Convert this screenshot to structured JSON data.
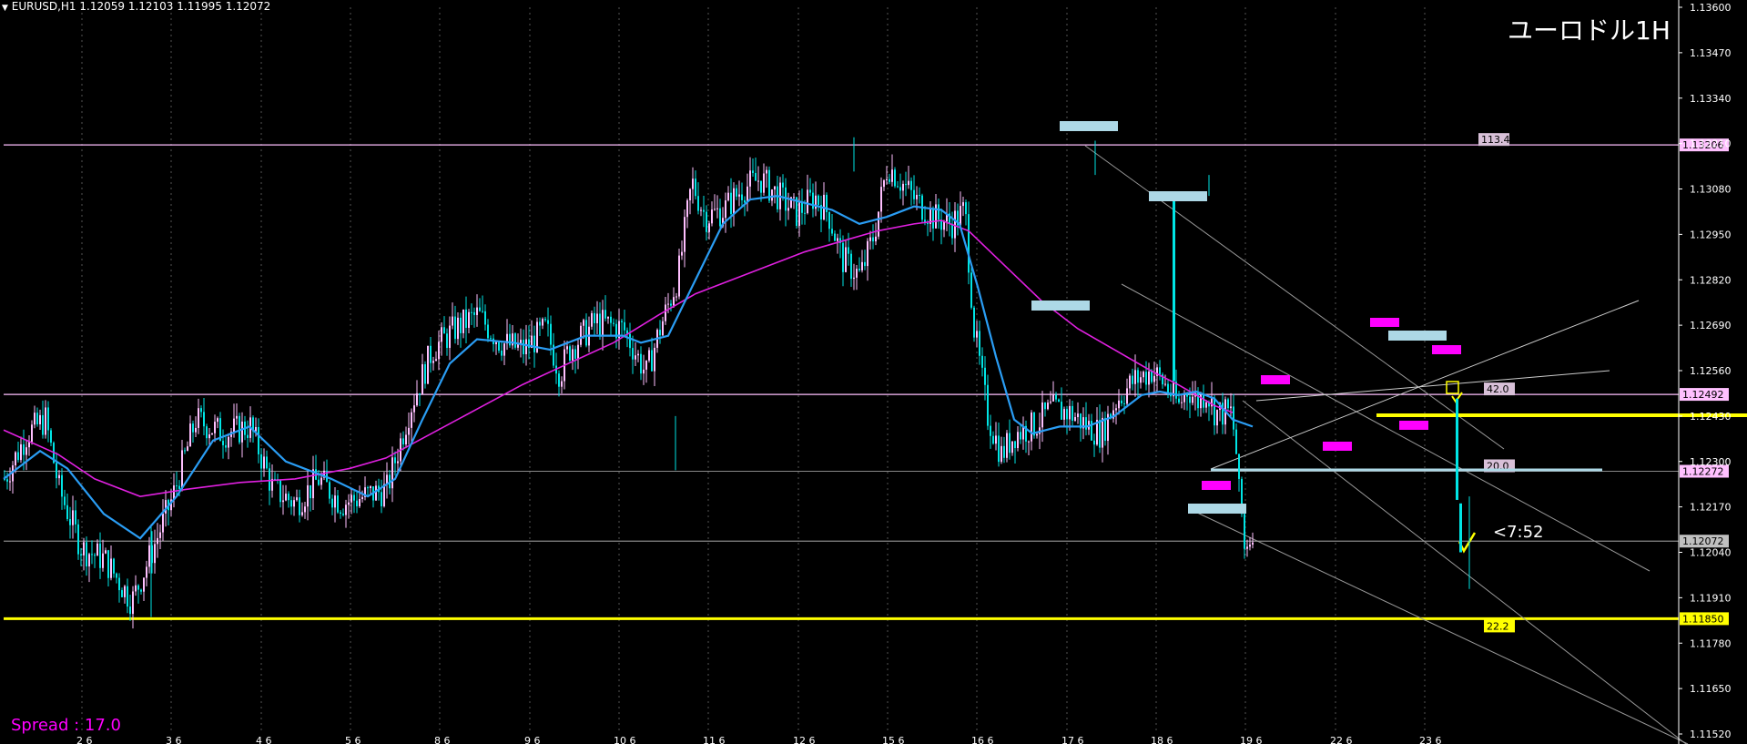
{
  "symbol_header": "EURUSD,H1  1.12059 1.12103 1.11995 1.12072",
  "title": "ユーロドル1H",
  "spread_label": "Spread : 17.0",
  "timer_label": "<7:52",
  "colors": {
    "background": "#000000",
    "up_candle": "#ffc0ff",
    "down_candle": "#00e5e5",
    "ma_fast": "#2a9df4",
    "ma_slow": "#e020e0",
    "resistance_line": "#ffc0ff",
    "yellow_line": "#ffff00",
    "cyan_marker": "#add8e6",
    "magenta_marker": "#ff00ff"
  },
  "chart_data": {
    "type": "candlestick",
    "symbol": "EURUSD",
    "timeframe": "H1",
    "ohlc_last": {
      "open": 1.12059,
      "high": 1.12103,
      "low": 1.11995,
      "close": 1.12072
    },
    "ylim": [
      1.11455,
      1.13625
    ],
    "y_ticks": [
      "1.13600",
      "1.13470",
      "1.13340",
      "1.13210",
      "1.13080",
      "1.12950",
      "1.12820",
      "1.12690",
      "1.12560",
      "1.12430",
      "1.12300",
      "1.12170",
      "1.12040",
      "1.11910",
      "1.11780",
      "1.11650",
      "1.11520"
    ],
    "x_ticks": [
      "2 6",
      "3 6",
      "4 6",
      "5 6",
      "8 6",
      "9 6",
      "10 6",
      "11 6",
      "12 6",
      "15 6",
      "16 6",
      "17 6",
      "18 6",
      "19 6",
      "22 6",
      "23 6"
    ],
    "candle_anchors": [
      [
        0,
        1.1225
      ],
      [
        25,
        1.1238
      ],
      [
        45,
        1.1242
      ],
      [
        60,
        1.1222
      ],
      [
        85,
        1.1205
      ],
      [
        110,
        1.1202
      ],
      [
        140,
        1.119
      ],
      [
        160,
        1.1203
      ],
      [
        185,
        1.122
      ],
      [
        210,
        1.1242
      ],
      [
        240,
        1.1238
      ],
      [
        270,
        1.124
      ],
      [
        295,
        1.1222
      ],
      [
        320,
        1.1218
      ],
      [
        345,
        1.1225
      ],
      [
        370,
        1.1218
      ],
      [
        395,
        1.122
      ],
      [
        420,
        1.1222
      ],
      [
        445,
        1.1245
      ],
      [
        470,
        1.1262
      ],
      [
        495,
        1.1268
      ],
      [
        520,
        1.1272
      ],
      [
        545,
        1.1264
      ],
      [
        570,
        1.1262
      ],
      [
        595,
        1.1268
      ],
      [
        610,
        1.1255
      ],
      [
        620,
        1.1262
      ],
      [
        650,
        1.127
      ],
      [
        680,
        1.1268
      ],
      [
        705,
        1.1255
      ],
      [
        720,
        1.1268
      ],
      [
        740,
        1.1283
      ],
      [
        755,
        1.131
      ],
      [
        770,
        1.13
      ],
      [
        790,
        1.1302
      ],
      [
        810,
        1.1308
      ],
      [
        830,
        1.1311
      ],
      [
        850,
        1.1306
      ],
      [
        870,
        1.1301
      ],
      [
        890,
        1.1306
      ],
      [
        905,
        1.1301
      ],
      [
        920,
        1.1288
      ],
      [
        940,
        1.1283
      ],
      [
        955,
        1.1295
      ],
      [
        970,
        1.1315
      ],
      [
        985,
        1.131
      ],
      [
        1000,
        1.1305
      ],
      [
        1020,
        1.13
      ],
      [
        1040,
        1.1298
      ],
      [
        1055,
        1.1302
      ],
      [
        1065,
        1.1268
      ],
      [
        1080,
        1.1243
      ],
      [
        1095,
        1.1232
      ],
      [
        1110,
        1.1238
      ],
      [
        1130,
        1.124
      ],
      [
        1150,
        1.1245
      ],
      [
        1170,
        1.1244
      ],
      [
        1190,
        1.124
      ],
      [
        1205,
        1.1238
      ],
      [
        1220,
        1.1247
      ],
      [
        1240,
        1.1253
      ],
      [
        1260,
        1.1256
      ],
      [
        1275,
        1.1252
      ],
      [
        1290,
        1.1246
      ],
      [
        1300,
        1.1251
      ],
      [
        1310,
        1.1247
      ],
      [
        1320,
        1.125
      ],
      [
        1330,
        1.1244
      ],
      [
        1340,
        1.1244
      ],
      [
        1348,
        1.1244
      ],
      [
        1356,
        1.1225
      ],
      [
        1362,
        1.1205
      ],
      [
        1372,
        1.1207
      ]
    ],
    "ma_fast": [
      [
        0,
        1.1225
      ],
      [
        40,
        1.1233
      ],
      [
        70,
        1.1228
      ],
      [
        110,
        1.1215
      ],
      [
        150,
        1.1208
      ],
      [
        190,
        1.122
      ],
      [
        230,
        1.1236
      ],
      [
        270,
        1.124
      ],
      [
        310,
        1.123
      ],
      [
        360,
        1.1225
      ],
      [
        400,
        1.122
      ],
      [
        430,
        1.1225
      ],
      [
        460,
        1.1242
      ],
      [
        490,
        1.1258
      ],
      [
        520,
        1.1265
      ],
      [
        560,
        1.1264
      ],
      [
        600,
        1.1262
      ],
      [
        640,
        1.1266
      ],
      [
        680,
        1.1266
      ],
      [
        700,
        1.1264
      ],
      [
        730,
        1.1266
      ],
      [
        760,
        1.1282
      ],
      [
        790,
        1.1298
      ],
      [
        820,
        1.1305
      ],
      [
        850,
        1.1306
      ],
      [
        880,
        1.1304
      ],
      [
        910,
        1.1302
      ],
      [
        940,
        1.1298
      ],
      [
        970,
        1.13
      ],
      [
        1000,
        1.1303
      ],
      [
        1030,
        1.1302
      ],
      [
        1050,
        1.1298
      ],
      [
        1070,
        1.128
      ],
      [
        1090,
        1.126
      ],
      [
        1110,
        1.1242
      ],
      [
        1130,
        1.1238
      ],
      [
        1160,
        1.124
      ],
      [
        1190,
        1.124
      ],
      [
        1220,
        1.1243
      ],
      [
        1250,
        1.1249
      ],
      [
        1270,
        1.125
      ],
      [
        1290,
        1.1249
      ],
      [
        1310,
        1.125
      ],
      [
        1330,
        1.1248
      ],
      [
        1350,
        1.1242
      ],
      [
        1372,
        1.124
      ]
    ],
    "ma_slow": [
      [
        0,
        1.1239
      ],
      [
        60,
        1.1232
      ],
      [
        100,
        1.1225
      ],
      [
        150,
        1.122
      ],
      [
        200,
        1.1222
      ],
      [
        260,
        1.1224
      ],
      [
        320,
        1.1225
      ],
      [
        380,
        1.1228
      ],
      [
        420,
        1.1231
      ],
      [
        470,
        1.1238
      ],
      [
        520,
        1.1245
      ],
      [
        570,
        1.1252
      ],
      [
        620,
        1.1258
      ],
      [
        670,
        1.1264
      ],
      [
        720,
        1.1272
      ],
      [
        760,
        1.1278
      ],
      [
        800,
        1.1282
      ],
      [
        840,
        1.1286
      ],
      [
        880,
        1.129
      ],
      [
        920,
        1.1293
      ],
      [
        960,
        1.1296
      ],
      [
        1000,
        1.1298
      ],
      [
        1030,
        1.1299
      ],
      [
        1060,
        1.1296
      ],
      [
        1100,
        1.1286
      ],
      [
        1140,
        1.1276
      ],
      [
        1180,
        1.1268
      ],
      [
        1220,
        1.1262
      ],
      [
        1260,
        1.1256
      ],
      [
        1290,
        1.1252
      ],
      [
        1310,
        1.1249
      ],
      [
        1330,
        1.1246
      ],
      [
        1350,
        1.1244
      ]
    ],
    "horizontal_levels": [
      {
        "price": 1.13206,
        "label": "1.13206",
        "tag": "113.4",
        "color": "#ffc0ff"
      },
      {
        "price": 1.12492,
        "label": "1.12492",
        "tag": "42.0",
        "color": "#ffc0ff"
      },
      {
        "price": 1.12272,
        "label": "1.12272",
        "tag": "20.0",
        "color": "#ffffff"
      },
      {
        "price": 1.12072,
        "label": "1.12072",
        "tag": "",
        "color": "#888888"
      },
      {
        "price": 1.1185,
        "label": "1.11850",
        "tag": "22.2",
        "color": "#ffff00"
      }
    ]
  }
}
